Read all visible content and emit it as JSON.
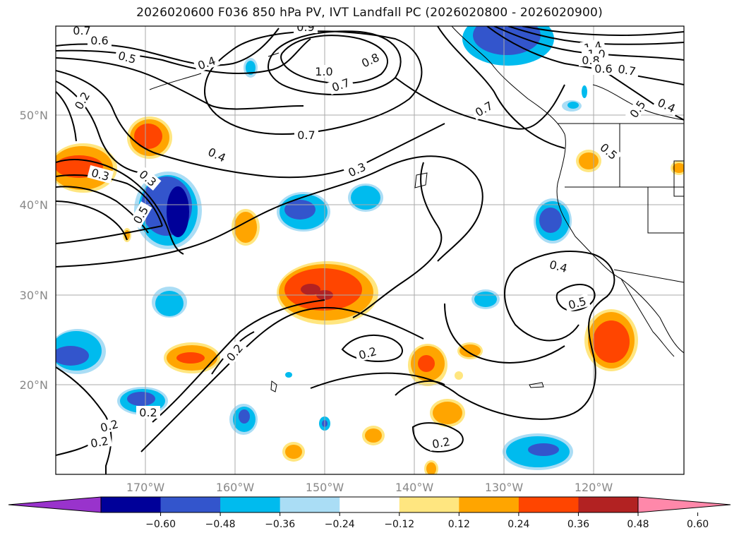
{
  "title": "2026020600 F036 850 hPa PV, IVT Landfall PC (2026020800 - 2026020900)",
  "map": {
    "lat_ticks": [
      "50°N",
      "40°N",
      "30°N",
      "20°N"
    ],
    "lon_ticks": [
      "170°W",
      "160°W",
      "150°W",
      "140°W",
      "130°W",
      "120°W"
    ],
    "contour_labels": [
      "0.7",
      "0.6",
      "0.5",
      "0.4",
      "0.9",
      "1.0",
      "0.8",
      "0.7",
      "1.4",
      "1.0",
      "0.8",
      "0.6",
      "0.7",
      "0.2",
      "0.7",
      "0.7",
      "0.4",
      "0.5",
      "0.4",
      "0.3",
      "0.5",
      "0.3",
      "0.5",
      "0.3",
      "0.4",
      "0.5",
      "0.2",
      "0.2",
      "0.2",
      "0.2",
      "0.2",
      "0.2"
    ]
  },
  "colorbar": {
    "tick_labels": [
      "−0.60",
      "−0.48",
      "−0.36",
      "−0.24",
      "−0.12",
      "0.12",
      "0.24",
      "0.36",
      "0.48",
      "0.60"
    ],
    "colors": [
      "#9933cc",
      "#000099",
      "#3355cc",
      "#00bbee",
      "#aaddf5",
      "#ffffff",
      "#ffe680",
      "#ffa500",
      "#ff4500",
      "#b22222",
      "#ff88aa"
    ]
  },
  "fill_colors": {
    "neg_light": "#aaddf5",
    "neg_mid": "#00bbee",
    "neg_strong": "#3355cc",
    "neg_max": "#000099",
    "pos_light": "#ffe680",
    "pos_mid": "#ffa500",
    "pos_strong": "#ff4500",
    "pos_max": "#b22222"
  }
}
